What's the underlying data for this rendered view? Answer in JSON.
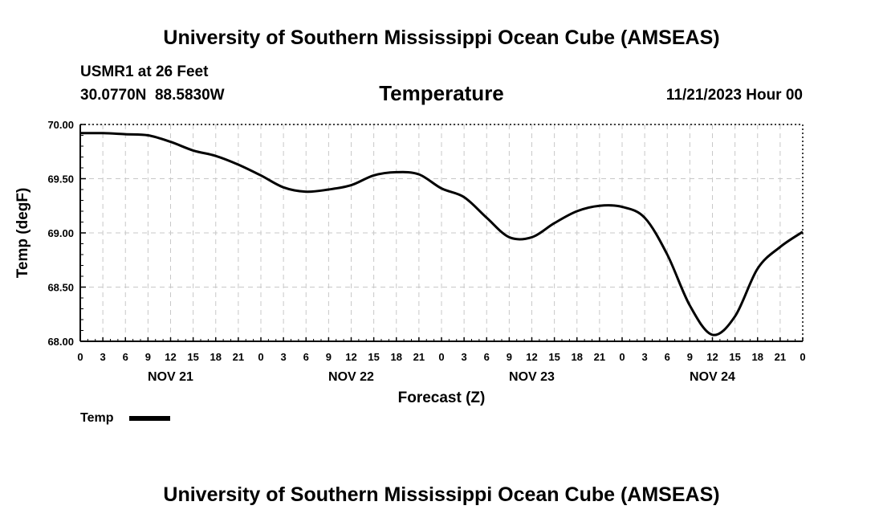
{
  "header": {
    "main_title": "University of Southern Mississippi Ocean Cube (AMSEAS)",
    "station": "USMR1 at 26 Feet",
    "coords": "30.0770N  88.5830W",
    "variable": "Temperature",
    "datetime": "11/21/2023 Hour 00"
  },
  "footer": {
    "title": "University of Southern Mississippi Ocean Cube (AMSEAS)"
  },
  "chart_data": {
    "type": "line",
    "title": "Temperature",
    "xlabel": "Forecast (Z)",
    "ylabel": "Temp (degF)",
    "ylim": [
      68.0,
      70.0
    ],
    "yticks": [
      "68.00",
      "68.50",
      "69.00",
      "69.50",
      "70.00"
    ],
    "ytick_values": [
      68.0,
      68.5,
      69.0,
      69.5,
      70.0
    ],
    "xlim_hours": [
      0,
      96
    ],
    "x_tick_labels": [
      "0",
      "3",
      "6",
      "9",
      "12",
      "15",
      "18",
      "21",
      "0",
      "3",
      "6",
      "9",
      "12",
      "15",
      "18",
      "21",
      "0",
      "3",
      "6",
      "9",
      "12",
      "15",
      "18",
      "21",
      "0",
      "3",
      "6",
      "9",
      "12",
      "15",
      "18",
      "21",
      "0"
    ],
    "day_labels": [
      "NOV 21",
      "NOV 22",
      "NOV 23",
      "NOV 24"
    ],
    "day_label_hours": [
      12,
      36,
      60,
      84
    ],
    "grid": true,
    "legend": {
      "label": "Temp",
      "placement": "bottom-left"
    },
    "series": [
      {
        "name": "Temp",
        "x": [
          0,
          3,
          6,
          9,
          12,
          15,
          18,
          21,
          24,
          27,
          30,
          33,
          36,
          39,
          42,
          45,
          48,
          51,
          54,
          57,
          60,
          63,
          66,
          69,
          72,
          75,
          78,
          81,
          84,
          87,
          90,
          93,
          96
        ],
        "values": [
          69.92,
          69.92,
          69.91,
          69.9,
          69.84,
          69.76,
          69.71,
          69.63,
          69.53,
          69.42,
          69.38,
          69.4,
          69.44,
          69.53,
          69.56,
          69.54,
          69.41,
          69.33,
          69.14,
          68.96,
          68.96,
          69.09,
          69.2,
          69.25,
          69.24,
          69.14,
          68.8,
          68.33,
          68.06,
          68.23,
          68.67,
          68.87,
          69.01
        ]
      }
    ]
  }
}
